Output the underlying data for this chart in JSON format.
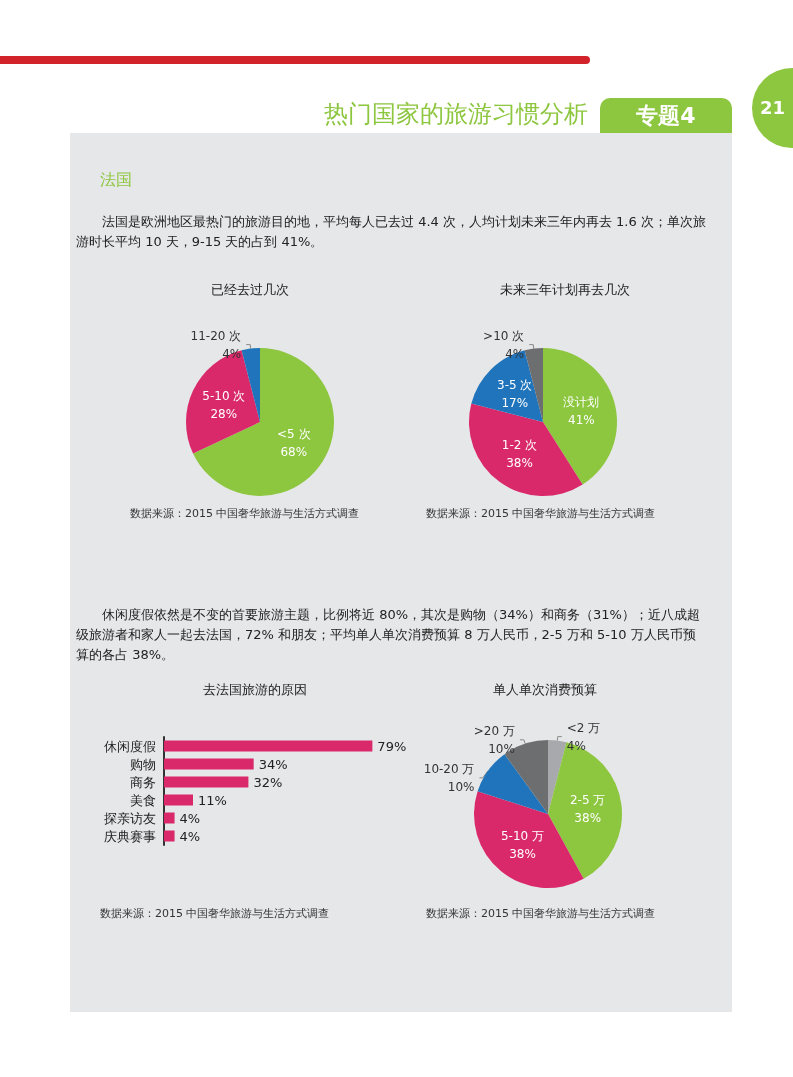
{
  "chart_data": [
    {
      "type": "pie",
      "title": "已经去过几次",
      "categories": [
        "<5 次",
        "5-10 次",
        "11-20 次"
      ],
      "values": [
        68,
        28,
        4
      ],
      "value_labels": [
        "68%",
        "28%",
        "4%"
      ],
      "colors": [
        "#8dc63f",
        "#d9296a",
        "#1f74bb"
      ],
      "annotations": [
        "热门国家的旅游习惯分析",
        "专题4",
        "21",
        "法国",
        "法国是欧洲地区最热门的旅游目的地，平均每人已去过 4.4 次，人均计划未来三年内再去 1.6 次；单次旅游时长平均 10 天，9-15 天的占到 41%。",
        "数据来源：2015 中国奢华旅游与生活方式调查"
      ]
    },
    {
      "type": "pie",
      "title": "未来三年计划再去几次",
      "categories": [
        "没计划",
        "1-2 次",
        "3-5 次",
        ">10 次"
      ],
      "values": [
        41,
        38,
        17,
        4
      ],
      "value_labels": [
        "41%",
        "38%",
        "17%",
        "4%"
      ],
      "colors": [
        "#8dc63f",
        "#d9296a",
        "#1f74bb",
        "#6d6e70"
      ],
      "annotations": [
        "数据来源：2015 中国奢华旅游与生活方式调查"
      ]
    },
    {
      "type": "bar",
      "orientation": "horizontal",
      "title": "去法国旅游的原因",
      "categories": [
        "休闲度假",
        "购物",
        "商务",
        "美食",
        "探亲访友",
        "庆典赛事"
      ],
      "values": [
        79,
        34,
        32,
        11,
        4,
        4
      ],
      "value_labels": [
        "79%",
        "34%",
        "32%",
        "11%",
        "4%",
        "4%"
      ],
      "color": "#d9296a",
      "annotations": [
        "休闲度假依然是不变的首要旅游主题，比例将近 80%，其次是购物（34%）和商务（31%）；近八成超级旅游者和家人一起去法国，72% 和朋友；平均单人单次消费预算 8 万人民币，2-5 万和 5-10 万人民币预算的各占 38%。",
        "数据来源：2015 中国奢华旅游与生活方式调查"
      ]
    },
    {
      "type": "pie",
      "title": "单人单次消费预算",
      "categories": [
        "<2 万",
        "2-5 万",
        "5-10 万",
        "10-20 万",
        ">20 万"
      ],
      "values": [
        4,
        38,
        38,
        10,
        10
      ],
      "value_labels": [
        "4%",
        "38%",
        "38%",
        "10%",
        "10%"
      ],
      "colors": [
        "#a7a9ac",
        "#8dc63f",
        "#d9296a",
        "#1f74bb",
        "#6d6e70"
      ],
      "annotations": [
        "数据来源：2015 中国奢华旅游与生活方式调查"
      ]
    }
  ]
}
